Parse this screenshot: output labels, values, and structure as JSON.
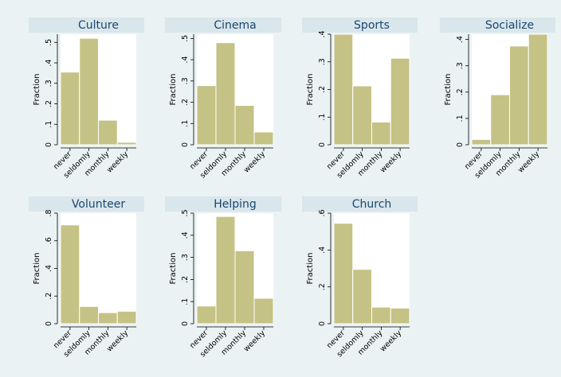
{
  "chart_data": [
    {
      "type": "bar",
      "title": "Culture",
      "ylabel": "Fraction",
      "categories": [
        "never",
        "seldomly",
        "monthly",
        "weekly"
      ],
      "values": [
        0.355,
        0.52,
        0.12,
        0.012
      ],
      "yticks": [
        0,
        0.1,
        0.2,
        0.3,
        0.4,
        0.5
      ],
      "ytick_labels": [
        "0",
        ".1",
        ".2",
        ".3",
        ".4",
        ".5"
      ],
      "ylim": [
        0,
        0.54
      ]
    },
    {
      "type": "bar",
      "title": "Cinema",
      "ylabel": "Fraction",
      "categories": [
        "never",
        "seldomly",
        "monthly",
        "weekly"
      ],
      "values": [
        0.278,
        0.48,
        0.185,
        0.06
      ],
      "yticks": [
        0,
        0.1,
        0.2,
        0.3,
        0.4,
        0.5
      ],
      "ytick_labels": [
        "0",
        ".1",
        ".2",
        ".3",
        ".4",
        ".5"
      ],
      "ylim": [
        0,
        0.52
      ]
    },
    {
      "type": "bar",
      "title": "Sports",
      "ylabel": "Fraction",
      "categories": [
        "never",
        "seldomly",
        "monthly",
        "weekly"
      ],
      "values": [
        0.4,
        0.213,
        0.082,
        0.313
      ],
      "yticks": [
        0,
        0.1,
        0.2,
        0.3,
        0.4
      ],
      "ytick_labels": [
        "0",
        ".1",
        ".2",
        ".3",
        ".4"
      ],
      "ylim": [
        0,
        0.4
      ]
    },
    {
      "type": "bar",
      "title": "Socialize",
      "ylabel": "Fraction",
      "categories": [
        "never",
        "seldomly",
        "monthly",
        "weekly"
      ],
      "values": [
        0.02,
        0.19,
        0.375,
        0.42
      ],
      "yticks": [
        0,
        0.1,
        0.2,
        0.3,
        0.4
      ],
      "ytick_labels": [
        "0",
        ".1",
        ".2",
        ".3",
        ".4"
      ],
      "ylim": [
        0,
        0.42
      ]
    },
    {
      "type": "bar",
      "title": "Volunteer",
      "ylabel": "Fraction",
      "categories": [
        "never",
        "seldomly",
        "monthly",
        "weekly"
      ],
      "values": [
        0.715,
        0.125,
        0.08,
        0.09
      ],
      "yticks": [
        0,
        0.2,
        0.4,
        0.6,
        0.8
      ],
      "ytick_labels": [
        "0",
        ".2",
        ".4",
        ".6",
        ".8"
      ],
      "ylim": [
        0,
        0.8
      ]
    },
    {
      "type": "bar",
      "title": "Helping",
      "ylabel": "Fraction",
      "categories": [
        "never",
        "seldomly",
        "monthly",
        "weekly"
      ],
      "values": [
        0.08,
        0.485,
        0.33,
        0.115
      ],
      "yticks": [
        0,
        0.1,
        0.2,
        0.3,
        0.4,
        0.5
      ],
      "ytick_labels": [
        "0",
        ".1",
        ".2",
        ".3",
        ".4",
        ".5"
      ],
      "ylim": [
        0,
        0.5
      ]
    },
    {
      "type": "bar",
      "title": "Church",
      "ylabel": "Fraction",
      "categories": [
        "never",
        "seldomly",
        "monthly",
        "weekly"
      ],
      "values": [
        0.545,
        0.295,
        0.09,
        0.085
      ],
      "yticks": [
        0,
        0.2,
        0.4,
        0.6
      ],
      "ytick_labels": [
        "0",
        ".2",
        ".4",
        ".6"
      ],
      "ylim": [
        0,
        0.6
      ]
    }
  ],
  "colors": {
    "bar": "#c5c285",
    "background": "#eaf2f3",
    "title_strip": "#d9e6eb",
    "title_text": "#1a476f"
  }
}
